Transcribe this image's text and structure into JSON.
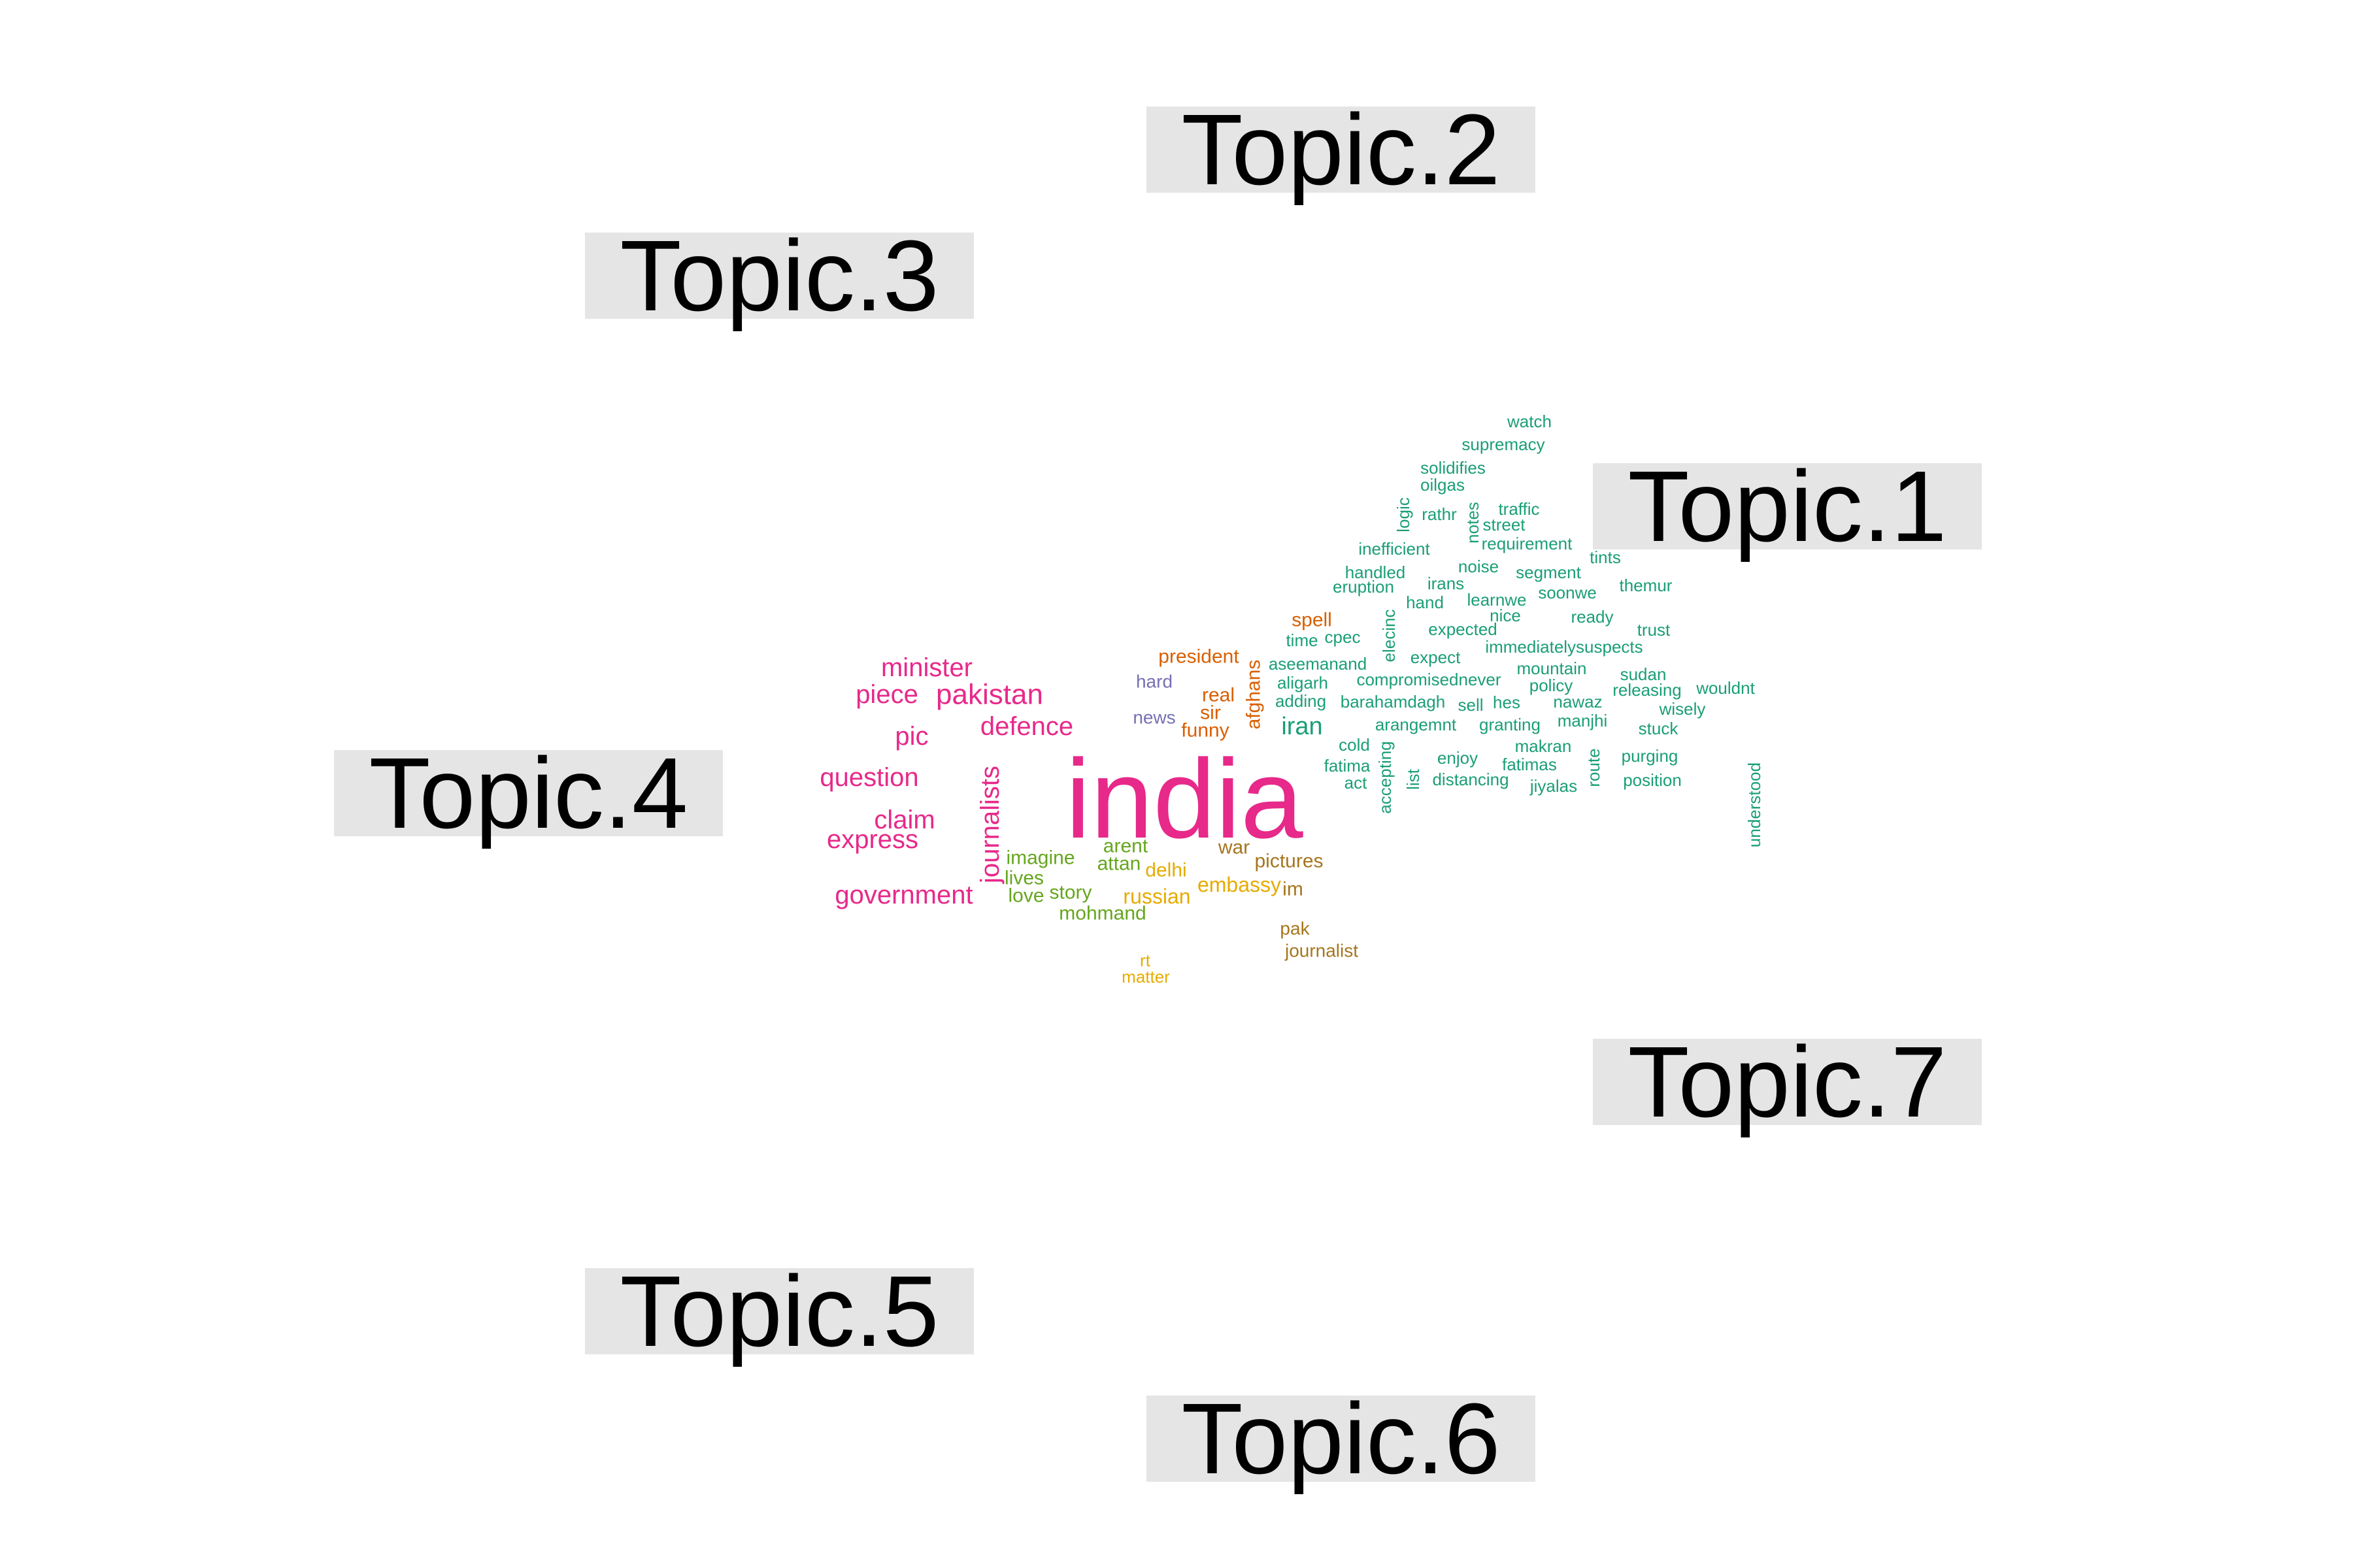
{
  "topics": [
    {
      "id": "t1",
      "label": "Topic.1"
    },
    {
      "id": "t2",
      "label": "Topic.2"
    },
    {
      "id": "t3",
      "label": "Topic.3"
    },
    {
      "id": "t4",
      "label": "Topic.4"
    },
    {
      "id": "t5",
      "label": "Topic.5"
    },
    {
      "id": "t6",
      "label": "Topic.6"
    },
    {
      "id": "t7",
      "label": "Topic.7"
    }
  ],
  "colors": {
    "topic1": "#1b9e77",
    "topic2": "#d95f02",
    "topic3": "#7570b3",
    "topic4": "#e7298a",
    "topic5": "#66a61e",
    "topic6": "#e6ab02",
    "topic7": "#a6761d",
    "label_background": "#e5e5e5"
  },
  "words": [
    {
      "text": "india",
      "topic": 4
    },
    {
      "text": "minister",
      "topic": 4
    },
    {
      "text": "piece",
      "topic": 4
    },
    {
      "text": "pakistan",
      "topic": 4
    },
    {
      "text": "pic",
      "topic": 4
    },
    {
      "text": "defence",
      "topic": 4
    },
    {
      "text": "question",
      "topic": 4
    },
    {
      "text": "claim",
      "topic": 4
    },
    {
      "text": "express",
      "topic": 4
    },
    {
      "text": "journalists",
      "topic": 4
    },
    {
      "text": "government",
      "topic": 4
    },
    {
      "text": "watch",
      "topic": 1
    },
    {
      "text": "supremacy",
      "topic": 1
    },
    {
      "text": "solidifies",
      "topic": 1
    },
    {
      "text": "oilgas",
      "topic": 1
    },
    {
      "text": "logic",
      "topic": 1
    },
    {
      "text": "rathr",
      "topic": 1
    },
    {
      "text": "notes",
      "topic": 1
    },
    {
      "text": "traffic",
      "topic": 1
    },
    {
      "text": "street",
      "topic": 1
    },
    {
      "text": "requirement",
      "topic": 1
    },
    {
      "text": "inefficient",
      "topic": 1
    },
    {
      "text": "handled",
      "topic": 1
    },
    {
      "text": "noise",
      "topic": 1
    },
    {
      "text": "segment",
      "topic": 1
    },
    {
      "text": "tints",
      "topic": 1
    },
    {
      "text": "eruption",
      "topic": 1
    },
    {
      "text": "irans",
      "topic": 1
    },
    {
      "text": "themur",
      "topic": 1
    },
    {
      "text": "hand",
      "topic": 1
    },
    {
      "text": "learnwe",
      "topic": 1
    },
    {
      "text": "soonwe",
      "topic": 1
    },
    {
      "text": "nice",
      "topic": 1
    },
    {
      "text": "ready",
      "topic": 1
    },
    {
      "text": "time",
      "topic": 1
    },
    {
      "text": "cpec",
      "topic": 1
    },
    {
      "text": "elecinc",
      "topic": 1
    },
    {
      "text": "expected",
      "topic": 1
    },
    {
      "text": "trust",
      "topic": 1
    },
    {
      "text": "immediatelysuspects",
      "topic": 1
    },
    {
      "text": "aseemanand",
      "topic": 1
    },
    {
      "text": "expect",
      "topic": 1
    },
    {
      "text": "mountain",
      "topic": 1
    },
    {
      "text": "sudan",
      "topic": 1
    },
    {
      "text": "aligarh",
      "topic": 1
    },
    {
      "text": "compromisednever",
      "topic": 1
    },
    {
      "text": "policy",
      "topic": 1
    },
    {
      "text": "releasing",
      "topic": 1
    },
    {
      "text": "wouldnt",
      "topic": 1
    },
    {
      "text": "adding",
      "topic": 1
    },
    {
      "text": "barahamdagh",
      "topic": 1
    },
    {
      "text": "sell",
      "topic": 1
    },
    {
      "text": "hes",
      "topic": 1
    },
    {
      "text": "nawaz",
      "topic": 1
    },
    {
      "text": "wisely",
      "topic": 1
    },
    {
      "text": "iran",
      "topic": 1
    },
    {
      "text": "arangemnt",
      "topic": 1
    },
    {
      "text": "granting",
      "topic": 1
    },
    {
      "text": "manjhi",
      "topic": 1
    },
    {
      "text": "stuck",
      "topic": 1
    },
    {
      "text": "cold",
      "topic": 1
    },
    {
      "text": "accepting",
      "topic": 1
    },
    {
      "text": "makran",
      "topic": 1
    },
    {
      "text": "understood",
      "topic": 1
    },
    {
      "text": "fatima",
      "topic": 1
    },
    {
      "text": "enjoy",
      "topic": 1
    },
    {
      "text": "fatimas",
      "topic": 1
    },
    {
      "text": "route",
      "topic": 1
    },
    {
      "text": "purging",
      "topic": 1
    },
    {
      "text": "act",
      "topic": 1
    },
    {
      "text": "list",
      "topic": 1
    },
    {
      "text": "distancing",
      "topic": 1
    },
    {
      "text": "jiyalas",
      "topic": 1
    },
    {
      "text": "position",
      "topic": 1
    },
    {
      "text": "spell",
      "topic": 2
    },
    {
      "text": "president",
      "topic": 2
    },
    {
      "text": "afghans",
      "topic": 2
    },
    {
      "text": "real",
      "topic": 2
    },
    {
      "text": "sir",
      "topic": 2
    },
    {
      "text": "funny",
      "topic": 2
    },
    {
      "text": "hard",
      "topic": 3
    },
    {
      "text": "news",
      "topic": 3
    },
    {
      "text": "imagine",
      "topic": 5
    },
    {
      "text": "arent",
      "topic": 5
    },
    {
      "text": "attan",
      "topic": 5
    },
    {
      "text": "lives",
      "topic": 5
    },
    {
      "text": "story",
      "topic": 5
    },
    {
      "text": "love",
      "topic": 5
    },
    {
      "text": "mohmand",
      "topic": 5
    },
    {
      "text": "delhi",
      "topic": 6
    },
    {
      "text": "russian",
      "topic": 6
    },
    {
      "text": "embassy",
      "topic": 6
    },
    {
      "text": "rt",
      "topic": 6
    },
    {
      "text": "matter",
      "topic": 6
    },
    {
      "text": "war",
      "topic": 7
    },
    {
      "text": "pictures",
      "topic": 7
    },
    {
      "text": "im",
      "topic": 7
    },
    {
      "text": "pak",
      "topic": 7
    },
    {
      "text": "journalist",
      "topic": 7
    }
  ]
}
